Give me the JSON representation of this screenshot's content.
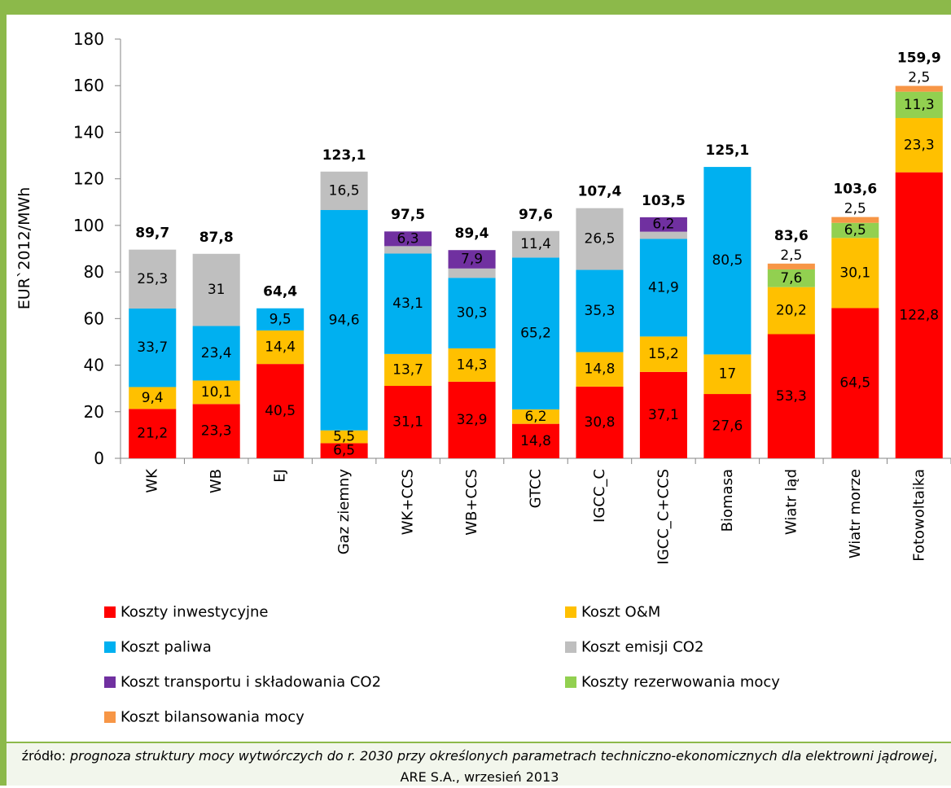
{
  "chart_data": {
    "type": "stacked-bar",
    "y_label": "EUR`2012/MWh",
    "categories": [
      "WK",
      "WB",
      "EJ",
      "Gaz ziemny",
      "WK+CCS",
      "WB+CCS",
      "GTCC",
      "IGCC_C",
      "IGCC_C+CCS",
      "Biomasa",
      "Wiatr ląd",
      "Wiatr morze",
      "Fotowoltaika"
    ],
    "series": [
      {
        "name": "Koszty inwestycyjne",
        "color": "#ff0000",
        "values": [
          21.2,
          23.3,
          40.5,
          6.5,
          31.1,
          32.9,
          14.8,
          30.8,
          37.1,
          27.6,
          53.3,
          64.5,
          122.8
        ],
        "value_labels": [
          "21,2",
          "23,3",
          "40,5",
          "6,5",
          "31,1",
          "32,9",
          "14,8",
          "30,8",
          "37,1",
          "27,6",
          "53,3",
          "64,5",
          "122,8"
        ]
      },
      {
        "name": "Koszt O&M",
        "color": "#ffc000",
        "values": [
          9.4,
          10.1,
          14.4,
          5.5,
          13.7,
          14.3,
          6.2,
          14.8,
          15.2,
          17,
          20.2,
          30.1,
          23.3
        ],
        "value_labels": [
          "9,4",
          "10,1",
          "14,4",
          "5,5",
          "13,7",
          "14,3",
          "6,2",
          "14,8",
          "15,2",
          "17",
          "20,2",
          "30,1",
          "23,3"
        ]
      },
      {
        "name": "Koszt paliwa",
        "color": "#00b0f0",
        "values": [
          33.7,
          23.4,
          9.5,
          94.6,
          43.1,
          30.3,
          65.2,
          35.3,
          41.9,
          80.5,
          null,
          null,
          null
        ],
        "value_labels": [
          "33,7",
          "23,4",
          "9,5",
          "94,6",
          "43,1",
          "30,3",
          "65,2",
          "35,3",
          "41,9",
          "80,5",
          null,
          null,
          null
        ]
      },
      {
        "name": "Koszt emisji CO2",
        "color": "#bfbfbf",
        "values": [
          25.3,
          31,
          null,
          16.5,
          3.2,
          4,
          11.4,
          26.5,
          3.1,
          null,
          null,
          null,
          null
        ],
        "value_labels": [
          "25,3",
          "31",
          null,
          "16,5",
          "3,2",
          "4",
          "11,4",
          "26,5",
          "3,1",
          null,
          null,
          null,
          null
        ]
      },
      {
        "name": "Koszt transportu i składowania CO2",
        "color": "#7030a0",
        "values": [
          null,
          null,
          null,
          null,
          6.3,
          7.9,
          null,
          null,
          6.2,
          null,
          null,
          null,
          null
        ],
        "value_labels": [
          null,
          null,
          null,
          null,
          "6,3",
          "7,9",
          null,
          null,
          "6,2",
          null,
          null,
          null,
          null
        ]
      },
      {
        "name": "Koszty rezerwowania mocy",
        "color": "#92d050",
        "values": [
          null,
          null,
          null,
          null,
          null,
          null,
          null,
          null,
          null,
          null,
          7.6,
          6.5,
          11.3
        ],
        "value_labels": [
          null,
          null,
          null,
          null,
          null,
          null,
          null,
          null,
          null,
          null,
          "7,6",
          "6,5",
          "11,3"
        ]
      },
      {
        "name": "Koszt bilansowania mocy",
        "color": "#f79646",
        "values": [
          null,
          null,
          null,
          null,
          null,
          null,
          null,
          null,
          null,
          null,
          2.5,
          2.5,
          2.5
        ],
        "value_labels": [
          null,
          null,
          null,
          null,
          null,
          null,
          null,
          null,
          null,
          null,
          "2,5",
          "2,5",
          "2,5"
        ]
      }
    ],
    "totals": [
      89.7,
      87.8,
      64.4,
      123.1,
      97.5,
      89.4,
      97.6,
      107.4,
      103.5,
      125.1,
      83.6,
      103.6,
      159.9
    ],
    "total_labels": [
      "89,7",
      "87,8",
      "64,4",
      "123,1",
      "97,5",
      "89,4",
      "97,6",
      "107,4",
      "103,5",
      "125,1",
      "83,6",
      "103,6",
      "159,9"
    ],
    "ylim": [
      0,
      180
    ],
    "yticks": [
      0,
      20,
      40,
      60,
      80,
      100,
      120,
      140,
      160,
      180
    ],
    "grid": false
  },
  "source": {
    "prefix": "źródło: ",
    "title": "prognoza struktury mocy wytwórczych do r. 2030 przy określonych parametrach techniczno-ekonomicznych dla elektrowni jądrowej",
    "suffix": ", ARE S.A., wrzesień  2013"
  }
}
